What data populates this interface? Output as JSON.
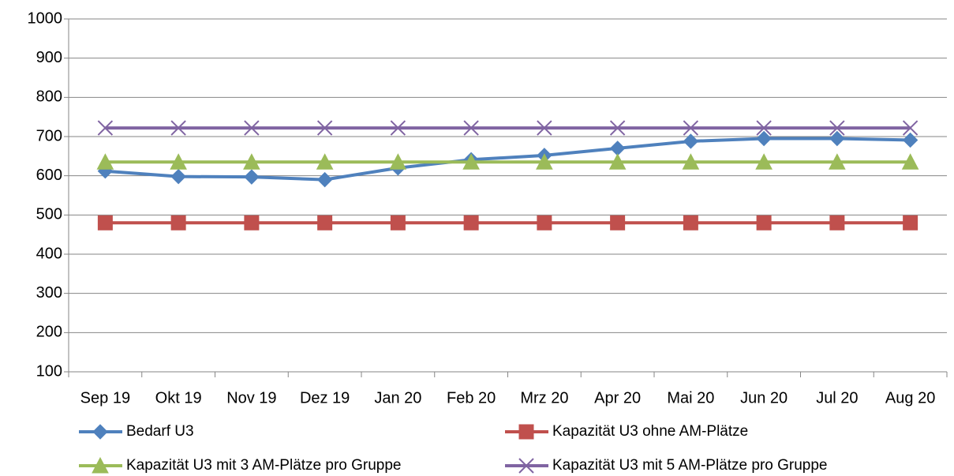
{
  "chart_data": {
    "type": "line",
    "categories": [
      "Sep 19",
      "Okt 19",
      "Nov 19",
      "Dez 19",
      "Jan 20",
      "Feb 20",
      "Mrz 20",
      "Apr 20",
      "Mai 20",
      "Jun 20",
      "Jul 20",
      "Aug 20"
    ],
    "series": [
      {
        "name": "Bedarf U3",
        "color": "#4f81bd",
        "marker": "diamond",
        "values": [
          612,
          598,
          597,
          590,
          620,
          641,
          652,
          670,
          688,
          695,
          695,
          691
        ]
      },
      {
        "name": "Kapazität U3 ohne AM-Plätze",
        "color": "#c0504d",
        "marker": "square",
        "values": [
          480,
          480,
          480,
          480,
          480,
          480,
          480,
          480,
          480,
          480,
          480,
          480
        ]
      },
      {
        "name": "Kapazität U3 mit 3 AM-Plätze pro Gruppe",
        "color": "#9bbb59",
        "marker": "triangle",
        "values": [
          635,
          635,
          635,
          635,
          635,
          635,
          635,
          635,
          635,
          635,
          635,
          635
        ]
      },
      {
        "name": "Kapazität U3 mit 5 AM-Plätze pro Gruppe",
        "color": "#8064a2",
        "marker": "x",
        "values": [
          722,
          722,
          722,
          722,
          722,
          722,
          722,
          722,
          722,
          722,
          722,
          722
        ]
      }
    ],
    "ylim": [
      100,
      1000
    ],
    "yticks": [
      100,
      200,
      300,
      400,
      500,
      600,
      700,
      800,
      900,
      1000
    ],
    "grid": true
  }
}
